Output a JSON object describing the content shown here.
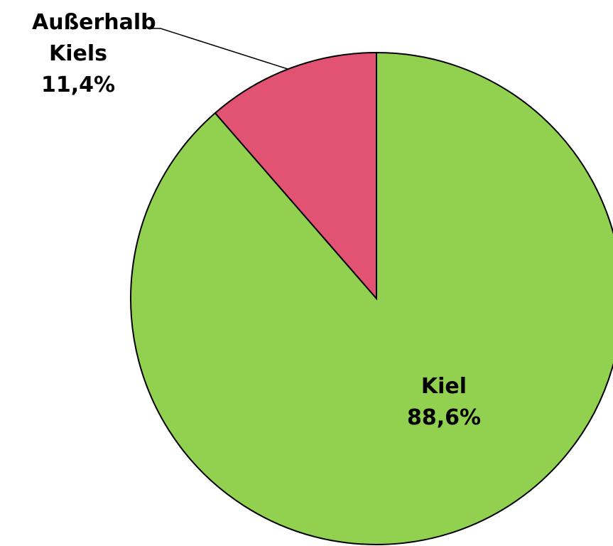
{
  "chart_data": {
    "type": "pie",
    "categories": [
      "Kiel",
      "Außerhalb Kiels"
    ],
    "values": [
      88.6,
      11.4
    ],
    "value_labels": [
      "88,6%",
      "11,4%"
    ],
    "colors": [
      "#92d050",
      "#e15273"
    ]
  }
}
